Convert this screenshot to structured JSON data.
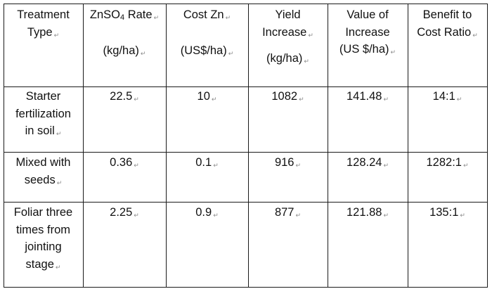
{
  "table": {
    "headers": [
      {
        "lines": [
          "Treatment",
          "Type"
        ]
      },
      {
        "lines": [
          "ZnSO",
          "(kg/ha)"
        ],
        "sub": "4",
        "rate_suffix": " Rate"
      },
      {
        "lines": [
          "Cost Zn",
          "(US$/ha)"
        ]
      },
      {
        "lines": [
          "Yield",
          "Increase",
          "(kg/ha)"
        ]
      },
      {
        "lines": [
          "Value of",
          "Increase",
          "(US $/ha)"
        ]
      },
      {
        "lines": [
          "Benefit to",
          "Cost Ratio"
        ]
      }
    ],
    "rows": [
      {
        "treatment": [
          "Starter",
          "fertilization",
          "in soil"
        ],
        "rate": "22.5",
        "cost": "10",
        "yield": "1082",
        "value": "141.48",
        "ratio": "14:1"
      },
      {
        "treatment": [
          "Mixed with",
          "seeds"
        ],
        "rate": "0.36",
        "cost": "0.1",
        "yield": "916",
        "value": "128.24",
        "ratio": "1282:1"
      },
      {
        "treatment": [
          "Foliar three",
          "times from",
          "jointing",
          "stage"
        ],
        "rate": "2.25",
        "cost": "0.9",
        "yield": "877",
        "value": "121.88",
        "ratio": "135:1"
      }
    ],
    "para_mark": "↵"
  }
}
